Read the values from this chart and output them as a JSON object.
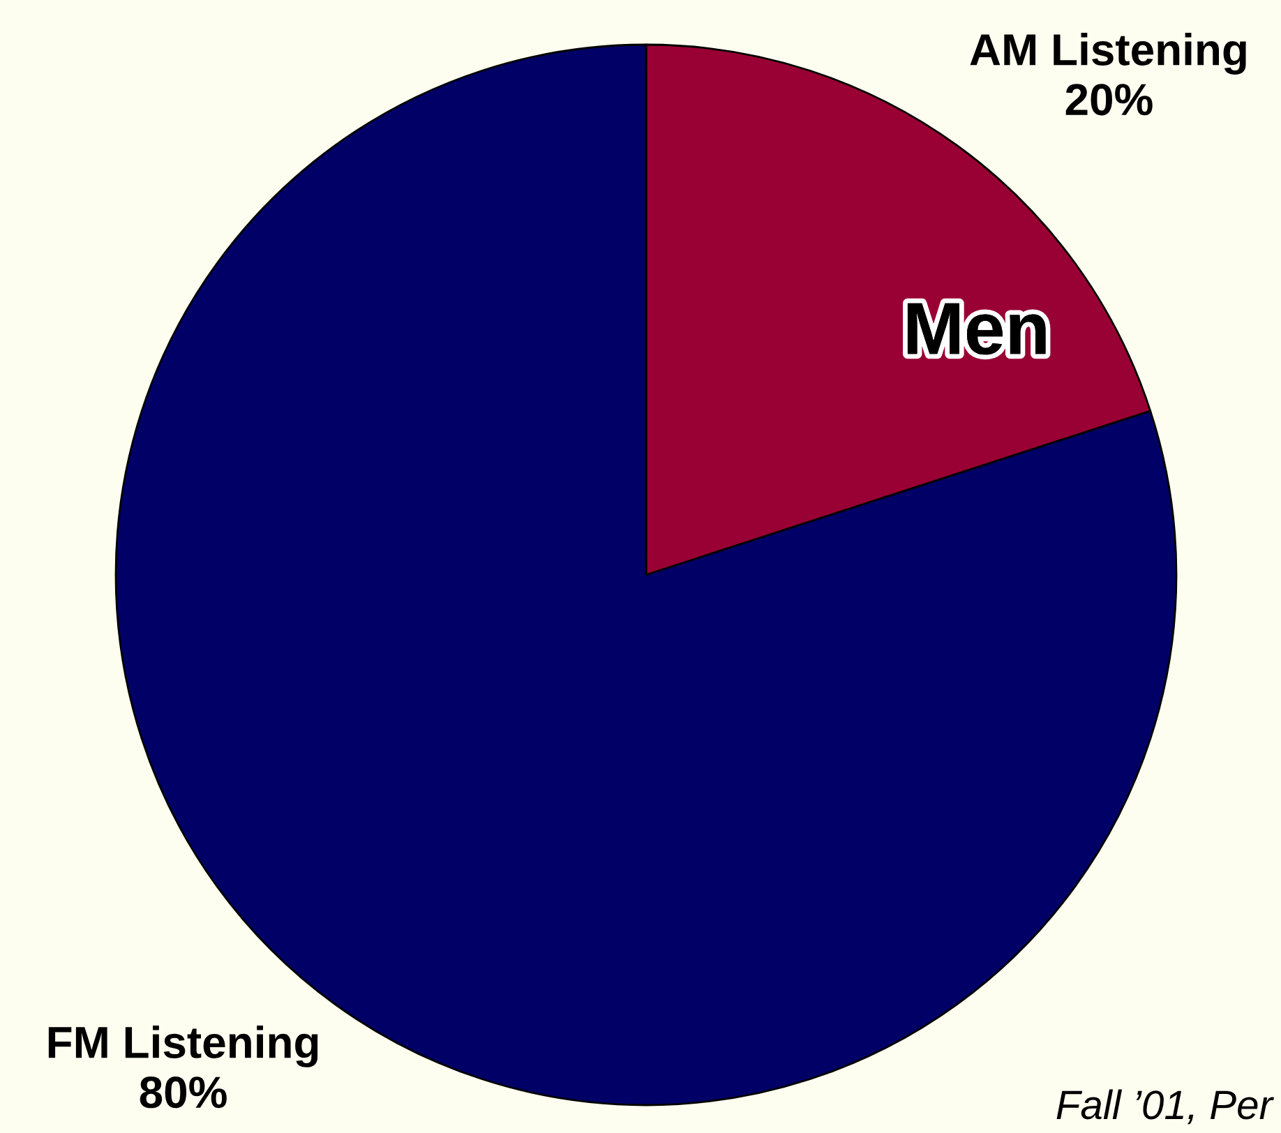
{
  "chart_data": {
    "type": "pie",
    "title": "Men",
    "categories": [
      "AM Listening",
      "FM Listening"
    ],
    "values": [
      20,
      80
    ],
    "colors": [
      "#990033",
      "#000066"
    ],
    "value_labels": [
      "20%",
      "80%"
    ],
    "annotations": [
      "Fall ’01, Per"
    ]
  }
}
